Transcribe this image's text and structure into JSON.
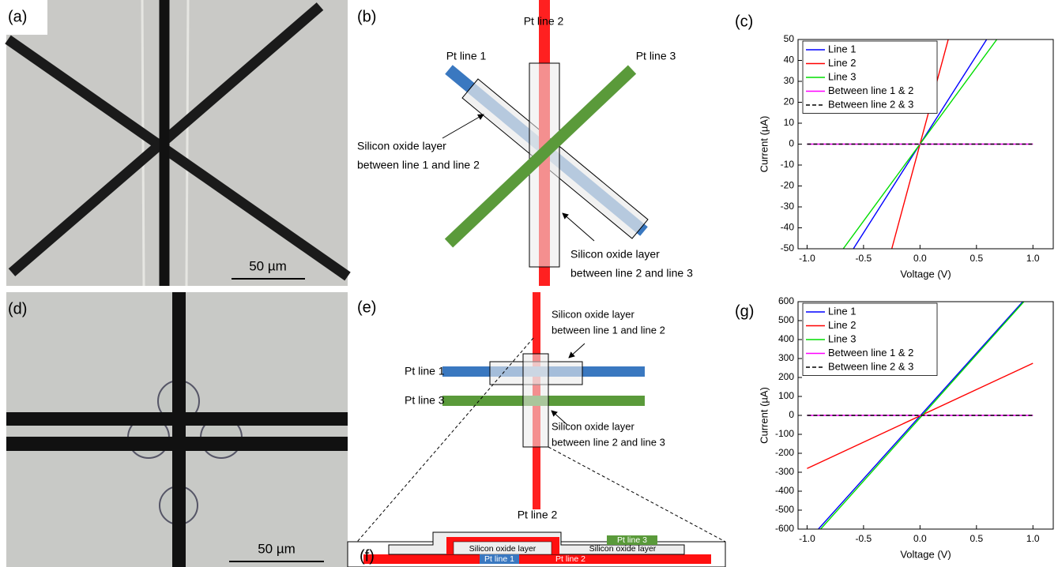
{
  "figure": {
    "panel_labels": [
      "(a)",
      "(b)",
      "(c)",
      "(d)",
      "(e)",
      "(f)",
      "(g)"
    ],
    "scale_bars": [
      "50 µm",
      "50 µm"
    ],
    "diagram_b": {
      "lines": [
        "Pt line 1",
        "Pt line 2",
        "Pt line 3"
      ],
      "oxide_1": [
        "Silicon oxide layer",
        "between line 1 and line 2"
      ],
      "oxide_2": [
        "Silicon oxide layer",
        "between line 2 and line 3"
      ]
    },
    "diagram_e": {
      "lines": [
        "Pt line 1",
        "Pt line 2",
        "Pt line 3"
      ],
      "oxide_1": [
        "Silicon oxide layer",
        "between line 1 and line 2"
      ],
      "oxide_2": [
        "Silicon oxide layer",
        "between line 2 and line 3"
      ]
    },
    "diagram_f": {
      "labels": [
        "Silicon oxide layer",
        "Silicon oxide layer",
        "Pt line 1",
        "Pt line 2",
        "Pt line 3"
      ]
    }
  },
  "chart_data": [
    {
      "type": "line",
      "xlabel": "Voltage (V)",
      "ylabel": "Current (µA)",
      "xlim": [
        -1.08,
        1.18
      ],
      "ylim": [
        -50,
        50
      ],
      "xticks": [
        {
          "value": -1,
          "label": "-1.0"
        },
        {
          "value": -0.5,
          "label": "-0.5"
        },
        {
          "value": 0,
          "label": "0.0"
        },
        {
          "value": 0.5,
          "label": "0.5"
        },
        {
          "value": 1,
          "label": "1.0"
        }
      ],
      "yticks": [
        -50,
        -40,
        -30,
        -20,
        -10,
        0,
        10,
        20,
        30,
        40,
        50
      ],
      "legend": "upper left",
      "series": [
        {
          "name": "Line 1",
          "color": "#0000ff",
          "x": [
            -0.59,
            0.59
          ],
          "values": [
            -50,
            50
          ]
        },
        {
          "name": "Line 2",
          "color": "#ff0000",
          "x": [
            -0.25,
            0.25
          ],
          "values": [
            -50,
            50
          ]
        },
        {
          "name": "Line 3",
          "color": "#00dd00",
          "x": [
            -0.68,
            0.68
          ],
          "values": [
            -50,
            50
          ]
        },
        {
          "name": "Between line 1 & 2",
          "color": "#ff00ff",
          "x": [
            -1,
            1
          ],
          "values": [
            0,
            0
          ]
        },
        {
          "name": "Between line 2 & 3",
          "color": "#000000",
          "dashed": true,
          "x": [
            -1,
            1
          ],
          "values": [
            0,
            0
          ]
        }
      ]
    },
    {
      "type": "line",
      "xlabel": "Voltage (V)",
      "ylabel": "Current (µA)",
      "xlim": [
        -1.08,
        1.18
      ],
      "ylim": [
        -600,
        600
      ],
      "xticks": [
        {
          "value": -1,
          "label": "-1.0"
        },
        {
          "value": -0.5,
          "label": "-0.5"
        },
        {
          "value": 0,
          "label": "0.0"
        },
        {
          "value": 0.5,
          "label": "0.5"
        },
        {
          "value": 1,
          "label": "1.0"
        }
      ],
      "yticks": [
        -600,
        -500,
        -400,
        -300,
        -200,
        -100,
        0,
        100,
        200,
        300,
        400,
        500,
        600
      ],
      "legend": "upper left",
      "series": [
        {
          "name": "Line 1",
          "color": "#0000ff",
          "x": [
            -0.9,
            0.91
          ],
          "values": [
            -600,
            600
          ]
        },
        {
          "name": "Line 2",
          "color": "#ff0000",
          "x": [
            -1,
            1
          ],
          "values": [
            -280,
            275
          ]
        },
        {
          "name": "Line 3",
          "color": "#00dd00",
          "x": [
            -0.88,
            0.92
          ],
          "values": [
            -600,
            600
          ]
        },
        {
          "name": "Between line 1 & 2",
          "color": "#ff00ff",
          "x": [
            -1,
            1
          ],
          "values": [
            0,
            0
          ]
        },
        {
          "name": "Between line 2 & 3",
          "color": "#000000",
          "dashed": true,
          "x": [
            -1,
            1
          ],
          "values": [
            0,
            0
          ]
        }
      ]
    }
  ]
}
